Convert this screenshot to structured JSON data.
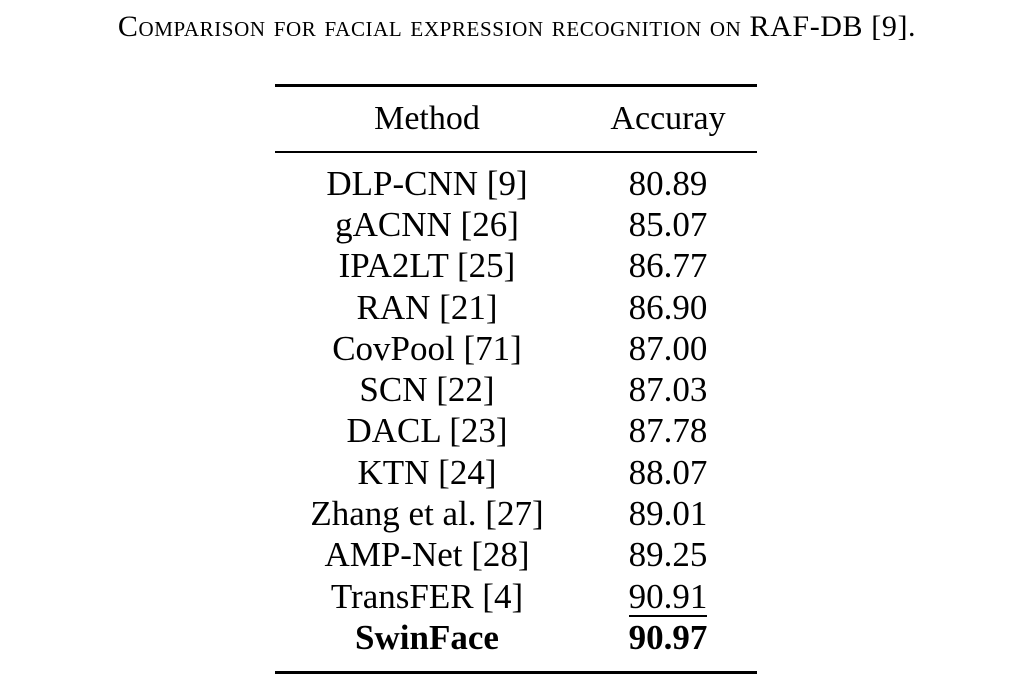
{
  "caption": "Comparison for facial expression recognition on RAF-DB [9].",
  "table": {
    "headers": {
      "method": "Method",
      "accuracy": "Accuray"
    },
    "rows": [
      {
        "method": "DLP-CNN [9]",
        "accuracy": "80.89"
      },
      {
        "method": "gACNN [26]",
        "accuracy": "85.07"
      },
      {
        "method": "IPA2LT [25]",
        "accuracy": "86.77"
      },
      {
        "method": "RAN [21]",
        "accuracy": "86.90"
      },
      {
        "method": "CovPool [71]",
        "accuracy": "87.00"
      },
      {
        "method": "SCN [22]",
        "accuracy": "87.03"
      },
      {
        "method": "DACL [23]",
        "accuracy": "87.78"
      },
      {
        "method": "KTN [24]",
        "accuracy": "88.07"
      },
      {
        "method": "Zhang et al. [27]",
        "accuracy": "89.01"
      },
      {
        "method": "AMP-Net [28]",
        "accuracy": "89.25"
      },
      {
        "method": "TransFER [4]",
        "accuracy": "90.91"
      },
      {
        "method": "SwinFace",
        "accuracy": "90.97"
      }
    ]
  }
}
